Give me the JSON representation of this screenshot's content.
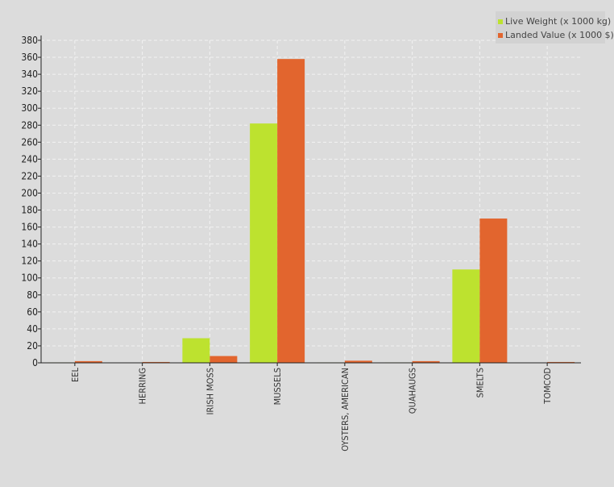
{
  "chart_data": {
    "type": "bar",
    "categories": [
      "EEL",
      "HERRING",
      "IRISH MOSS",
      "MUSSELS",
      "OYSTERS, AMERICAN",
      "QUAHAUGS",
      "SMELTS",
      "TOMCOD"
    ],
    "series": [
      {
        "name": "Live Weight (x 1000 kg)",
        "color": "#bde22f",
        "values": [
          0.5,
          0.3,
          29,
          282,
          0.5,
          0.5,
          110,
          0.3
        ]
      },
      {
        "name": "Landed Value (x 1000 $)",
        "color": "#e2652e",
        "values": [
          2,
          1,
          8,
          358,
          2.5,
          2,
          170,
          1
        ]
      }
    ],
    "ylim": [
      0,
      380
    ],
    "yticks": [
      0,
      20,
      40,
      60,
      80,
      100,
      120,
      140,
      160,
      180,
      200,
      220,
      240,
      260,
      280,
      300,
      320,
      340,
      360,
      380
    ],
    "grid": true,
    "legend_position": "top-right",
    "title": "",
    "xlabel": "",
    "ylabel": ""
  }
}
